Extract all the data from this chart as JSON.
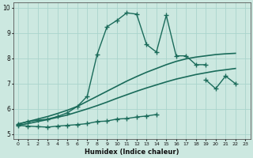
{
  "xlabel": "Humidex (Indice chaleur)",
  "xlim": [
    -0.5,
    23.5
  ],
  "ylim": [
    4.8,
    10.2
  ],
  "background_color": "#cce8e0",
  "grid_color": "#aad4cc",
  "line_color": "#1a6b5a",
  "series": [
    {
      "x": [
        0,
        1,
        2,
        3,
        4,
        5,
        6,
        7,
        8,
        9,
        10,
        11,
        12,
        13,
        14,
        15,
        16,
        17,
        18,
        19,
        20,
        21,
        22
      ],
      "y": [
        5.4,
        5.5,
        5.55,
        5.6,
        5.7,
        5.85,
        6.1,
        6.5,
        8.15,
        9.25,
        9.5,
        9.8,
        9.75,
        8.55,
        8.25,
        9.7,
        8.1,
        8.1,
        7.75,
        7.75,
        null,
        null,
        null
      ],
      "marker": "+",
      "markersize": 4,
      "linewidth": 1.0
    },
    {
      "x": [
        0,
        1,
        2,
        3,
        4,
        5,
        6,
        7,
        8,
        9,
        10,
        11,
        12,
        13,
        14,
        15,
        16,
        17,
        18,
        19,
        20,
        21,
        22
      ],
      "y": [
        5.4,
        5.5,
        5.6,
        5.7,
        5.82,
        5.95,
        6.1,
        6.3,
        6.5,
        6.7,
        6.9,
        7.1,
        7.28,
        7.45,
        7.6,
        7.75,
        7.88,
        7.98,
        8.05,
        8.1,
        8.15,
        8.18,
        8.2
      ],
      "marker": null,
      "markersize": 0,
      "linewidth": 1.2
    },
    {
      "x": [
        0,
        1,
        2,
        3,
        4,
        5,
        6,
        7,
        8,
        9,
        10,
        11,
        12,
        13,
        14,
        15,
        16,
        17,
        18,
        19,
        20,
        21,
        22
      ],
      "y": [
        5.35,
        5.42,
        5.5,
        5.58,
        5.67,
        5.76,
        5.88,
        6.0,
        6.13,
        6.27,
        6.42,
        6.56,
        6.7,
        6.83,
        6.95,
        7.07,
        7.18,
        7.27,
        7.36,
        7.43,
        7.5,
        7.55,
        7.6
      ],
      "marker": null,
      "markersize": 0,
      "linewidth": 1.2
    },
    {
      "x": [
        0,
        1,
        2,
        3,
        4,
        5,
        6,
        7,
        8,
        9,
        10,
        11,
        12,
        13,
        14,
        15,
        16,
        17,
        18,
        19,
        20,
        21,
        22
      ],
      "y": [
        5.35,
        5.32,
        5.3,
        5.28,
        5.32,
        5.35,
        5.38,
        5.42,
        5.5,
        5.52,
        5.6,
        5.62,
        5.68,
        5.72,
        5.78,
        null,
        null,
        null,
        null,
        null,
        null,
        null,
        null
      ],
      "marker": "+",
      "markersize": 4,
      "linewidth": 1.0
    },
    {
      "x": [
        0,
        1,
        2,
        3,
        4,
        5,
        6,
        7,
        8,
        9,
        10,
        11,
        12,
        13,
        14,
        15,
        16,
        17,
        18,
        19,
        20,
        21,
        22
      ],
      "y": [
        5.38,
        null,
        null,
        null,
        null,
        null,
        null,
        null,
        null,
        null,
        null,
        null,
        null,
        null,
        null,
        null,
        null,
        null,
        null,
        7.15,
        6.8,
        7.3,
        7.0
      ],
      "marker": "+",
      "markersize": 4,
      "linewidth": 1.0
    }
  ]
}
